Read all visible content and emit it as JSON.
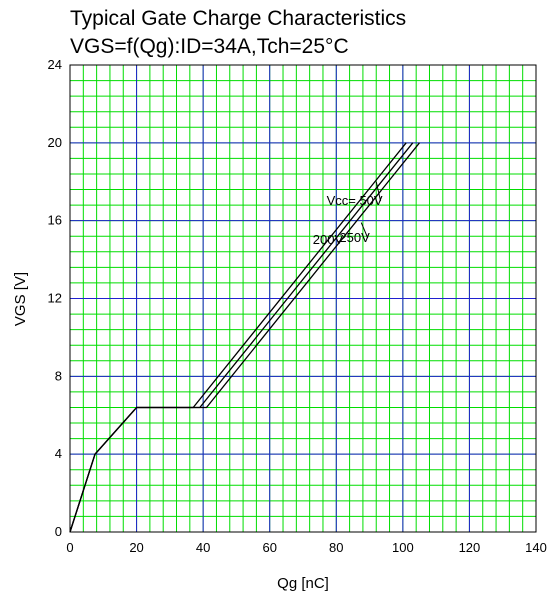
{
  "chart_data": {
    "type": "line",
    "title": "Typical Gate Charge Characteristics",
    "subtitle": "VGS=f(Qg):ID=34A,Tch=25°C",
    "xlabel": "Qg [nC]",
    "ylabel": "VGS [V]",
    "xlim": [
      0,
      140
    ],
    "ylim": [
      0,
      24
    ],
    "x_major_ticks": [
      0,
      20,
      40,
      60,
      80,
      100,
      120,
      140
    ],
    "y_major_ticks": [
      0,
      4,
      8,
      12,
      16,
      20,
      24
    ],
    "x_tick_labels": [
      "0",
      "20",
      "40",
      "60",
      "80",
      "100",
      "120",
      "140"
    ],
    "y_tick_labels": [
      "0",
      "4",
      "8",
      "12",
      "16",
      "20",
      "24"
    ],
    "x_minor_step": 4,
    "y_minor_step": 0.8,
    "grid": true,
    "colors": {
      "major_grid": "#2020d0",
      "minor_grid": "#00dd00",
      "line": "#000000"
    },
    "series": [
      {
        "name": "Vcc= 50V",
        "x": [
          0,
          7.5,
          20,
          37,
          101
        ],
        "y": [
          0,
          4,
          6.4,
          6.4,
          20
        ],
        "label_at": [
          85.5,
          16.8
        ],
        "pointer_end": [
          92,
          18.0
        ]
      },
      {
        "name": "250V",
        "x": [
          0,
          7.5,
          20,
          39,
          103
        ],
        "y": [
          0,
          4,
          6.4,
          6.4,
          20
        ],
        "label_at": [
          85.5,
          14.9
        ],
        "pointer_end": [
          87.5,
          15.9
        ]
      },
      {
        "name": "200V",
        "x": [
          0,
          7.5,
          20,
          41,
          105
        ],
        "y": [
          0,
          4,
          6.4,
          6.4,
          20
        ],
        "label_at": [
          77.5,
          14.8
        ],
        "pointer_end": [
          80.5,
          14.9
        ]
      }
    ]
  }
}
